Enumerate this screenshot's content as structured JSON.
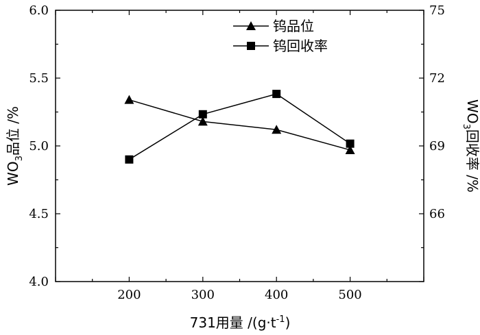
{
  "chart_data": {
    "type": "line",
    "x": [
      200,
      300,
      400,
      500
    ],
    "x_ticks": [
      "200",
      "300",
      "400",
      "500"
    ],
    "xlim": [
      100,
      600
    ],
    "xlabel": {
      "prefix": "731用量 /(g·t",
      "sup": "-1",
      "suffix": ")"
    },
    "ylabel_left": {
      "prefix": "WO",
      "sub": "3",
      "suffix": "品位 /%"
    },
    "ylabel_right": {
      "prefix": "WO",
      "sub": "3",
      "suffix": "回收率 /%"
    },
    "ylim_left": [
      4.0,
      6.0
    ],
    "ylim_right": [
      63,
      75
    ],
    "y_ticks_left": [
      "4.0",
      "4.5",
      "5.0",
      "5.5",
      "6.0"
    ],
    "y_ticks_right": [
      "66",
      "69",
      "72",
      "75"
    ],
    "grid": false,
    "legend_position": "top-center",
    "series": [
      {
        "name": "钨品位",
        "axis": "left",
        "marker": "triangle",
        "color": "#000000",
        "values": [
          5.34,
          5.18,
          5.12,
          4.97
        ]
      },
      {
        "name": "钨回收率",
        "axis": "right",
        "marker": "square",
        "color": "#000000",
        "values": [
          68.4,
          70.4,
          71.3,
          69.1
        ]
      }
    ]
  }
}
